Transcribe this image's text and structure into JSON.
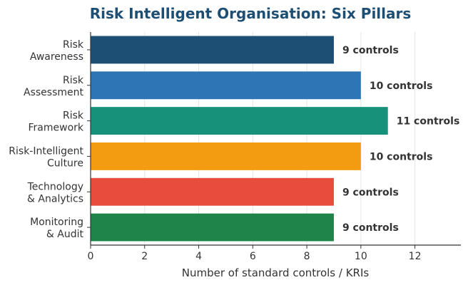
{
  "chart_data": {
    "type": "bar",
    "orientation": "horizontal",
    "title": "Risk Intelligent Organisation: Six Pillars",
    "xlabel": "Number of standard controls / KRIs",
    "ylabel": "",
    "xlim": [
      0,
      13.7
    ],
    "xticks": [
      0,
      2,
      4,
      6,
      8,
      10,
      12
    ],
    "grid": true,
    "categories": [
      [
        "Risk",
        "Awareness"
      ],
      [
        "Risk",
        "Assessment"
      ],
      [
        "Risk",
        "Framework"
      ],
      [
        "Risk-Intelligent",
        "Culture"
      ],
      [
        "Technology",
        "& Analytics"
      ],
      [
        "Monitoring",
        "& Audit"
      ]
    ],
    "values": [
      9,
      10,
      11,
      10,
      9,
      9
    ],
    "data_labels": [
      "9 controls",
      "10 controls",
      "11 controls",
      "10 controls",
      "9 controls",
      "9 controls"
    ],
    "colors": [
      "#1d4e74",
      "#2e75b6",
      "#17917a",
      "#f39c12",
      "#e74c3c",
      "#1e8449"
    ]
  }
}
